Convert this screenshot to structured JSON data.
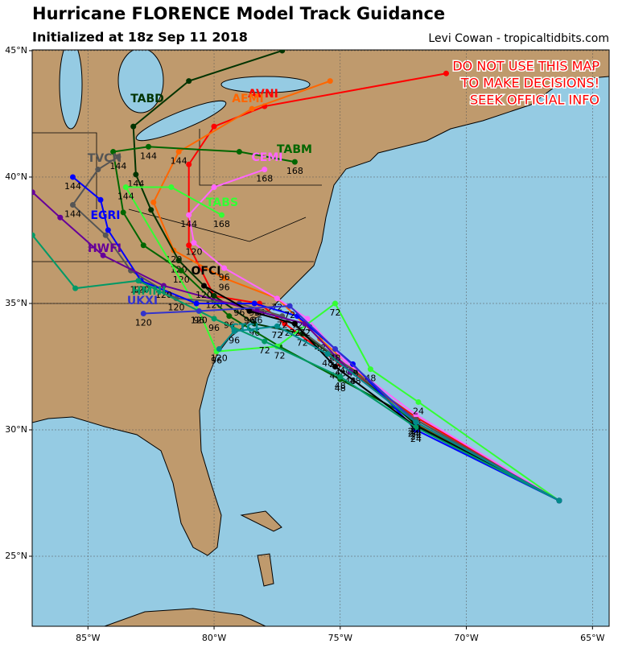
{
  "title": "Hurricane FLORENCE Model Track Guidance",
  "subtitle": "Initialized at 18z Sep 11 2018",
  "credit": "Levi Cowan - tropicaltidbits.com",
  "warning": [
    "DO NOT USE THIS MAP",
    "TO MAKE DECISIONS!",
    "SEEK OFFICIAL INFO"
  ],
  "lonlim": [
    -87.21,
    -64.34
  ],
  "latlim": [
    22.23,
    45.03
  ],
  "lonticks": [
    {
      "value": -85,
      "label": "85°W"
    },
    {
      "value": -80,
      "label": "80°W"
    },
    {
      "value": -75,
      "label": "75°W"
    },
    {
      "value": -70,
      "label": "70°W"
    },
    {
      "value": -65,
      "label": "65°W"
    }
  ],
  "latticks": [
    {
      "value": 25,
      "label": "25°N"
    },
    {
      "value": 30,
      "label": "30°N"
    },
    {
      "value": 35,
      "label": "35°N"
    },
    {
      "value": 40,
      "label": "40°N"
    },
    {
      "value": 45,
      "label": "45°N"
    }
  ],
  "models": [
    {
      "name": "AVNI",
      "color": "#ff0000",
      "points": [
        {
          "lon": -66.32,
          "lat": 27.2,
          "hour": null
        },
        {
          "lon": -72.0,
          "lat": 30.5,
          "hour": 24
        },
        {
          "lon": -75.0,
          "lat": 32.6,
          "hour": 48
        },
        {
          "lon": -77.2,
          "lat": 34.2,
          "hour": 72
        },
        {
          "lon": -78.2,
          "lat": 35.0,
          "hour": 96
        },
        {
          "lon": -80.0,
          "lat": 35.3,
          "hour": 120
        },
        {
          "lon": -81.0,
          "lat": 37.3,
          "hour": null
        },
        {
          "lon": -81.0,
          "lat": 40.5,
          "hour": null
        },
        {
          "lon": -80.0,
          "lat": 42.0,
          "hour": null
        },
        {
          "lon": -78.0,
          "lat": 42.8,
          "hour": null
        },
        {
          "lon": -70.8,
          "lat": 44.1,
          "hour": null
        }
      ]
    },
    {
      "name": "AEMI",
      "color": "#ff6600",
      "points": [
        {
          "lon": -66.32,
          "lat": 27.2,
          "hour": null
        },
        {
          "lon": -72.1,
          "lat": 30.3,
          "hour": 24
        },
        {
          "lon": -75.8,
          "lat": 33.6,
          "hour": 48
        },
        {
          "lon": -77.5,
          "lat": 35.2,
          "hour": 72
        },
        {
          "lon": -79.6,
          "lat": 36.0,
          "hour": 96
        },
        {
          "lon": -81.6,
          "lat": 37.1,
          "hour": 120
        },
        {
          "lon": -82.4,
          "lat": 39.0,
          "hour": null
        },
        {
          "lon": -81.4,
          "lat": 41.0,
          "hour": 144
        },
        {
          "lon": -78.5,
          "lat": 42.7,
          "hour": null
        },
        {
          "lon": -75.4,
          "lat": 43.8,
          "hour": null
        }
      ]
    },
    {
      "name": "TABD",
      "color": "#003300",
      "points": [
        {
          "lon": -66.32,
          "lat": 27.2,
          "hour": null
        },
        {
          "lon": -72.0,
          "lat": 30.2,
          "hour": 24
        },
        {
          "lon": -74.4,
          "lat": 32.3,
          "hour": 48
        },
        {
          "lon": -76.5,
          "lat": 33.8,
          "hour": 72
        },
        {
          "lon": -78.4,
          "lat": 34.2,
          "hour": 96
        },
        {
          "lon": -80.0,
          "lat": 35.3,
          "hour": null
        },
        {
          "lon": -81.4,
          "lat": 36.7,
          "hour": 120
        },
        {
          "lon": -82.5,
          "lat": 38.7,
          "hour": null
        },
        {
          "lon": -83.1,
          "lat": 40.1,
          "hour": 144
        },
        {
          "lon": -83.2,
          "lat": 42.0,
          "hour": null
        },
        {
          "lon": -81.0,
          "lat": 43.8,
          "hour": null
        },
        {
          "lon": -77.3,
          "lat": 45.0,
          "hour": null
        }
      ]
    },
    {
      "name": "TABM",
      "color": "#006600",
      "points": [
        {
          "lon": -66.32,
          "lat": 27.2,
          "hour": null
        },
        {
          "lon": -72.0,
          "lat": 30.4,
          "hour": 24
        },
        {
          "lon": -75.0,
          "lat": 32.0,
          "hour": 48
        },
        {
          "lon": -77.4,
          "lat": 33.3,
          "hour": 72
        },
        {
          "lon": -79.4,
          "lat": 34.5,
          "hour": 96
        },
        {
          "lon": -81.3,
          "lat": 36.3,
          "hour": 120
        },
        {
          "lon": -82.8,
          "lat": 37.3,
          "hour": null
        },
        {
          "lon": -83.6,
          "lat": 38.6,
          "hour": null
        },
        {
          "lon": -84.0,
          "lat": 41.0,
          "hour": null
        },
        {
          "lon": -82.6,
          "lat": 41.2,
          "hour": 144
        },
        {
          "lon": -79.0,
          "lat": 41.0,
          "hour": null
        },
        {
          "lon": -76.8,
          "lat": 40.6,
          "hour": 168
        }
      ]
    },
    {
      "name": "CEMI",
      "color": "#ff66ff",
      "points": [
        {
          "lon": -66.32,
          "lat": 27.2,
          "hour": null
        },
        {
          "lon": -72.0,
          "lat": 30.6,
          "hour": 24
        },
        {
          "lon": -74.8,
          "lat": 32.7,
          "hour": 48
        },
        {
          "lon": -76.3,
          "lat": 34.4,
          "hour": 72
        },
        {
          "lon": -77.5,
          "lat": 35.2,
          "hour": null
        },
        {
          "lon": -79.6,
          "lat": 36.4,
          "hour": 96
        },
        {
          "lon": -80.8,
          "lat": 37.4,
          "hour": 120
        },
        {
          "lon": -81.0,
          "lat": 38.5,
          "hour": 144
        },
        {
          "lon": -80.0,
          "lat": 39.6,
          "hour": null
        },
        {
          "lon": -78.0,
          "lat": 40.3,
          "hour": 168
        }
      ]
    },
    {
      "name": "TABS",
      "color": "#33ff33",
      "points": [
        {
          "lon": -66.32,
          "lat": 27.2,
          "hour": null
        },
        {
          "lon": -71.9,
          "lat": 31.1,
          "hour": 24
        },
        {
          "lon": -73.8,
          "lat": 32.4,
          "hour": 48
        },
        {
          "lon": -75.2,
          "lat": 35.0,
          "hour": 72
        },
        {
          "lon": -77.5,
          "lat": 33.3,
          "hour": null
        },
        {
          "lon": -79.9,
          "lat": 33.1,
          "hour": 96
        },
        {
          "lon": -80.6,
          "lat": 34.7,
          "hour": 120
        },
        {
          "lon": -83.5,
          "lat": 39.6,
          "hour": 144
        },
        {
          "lon": -81.7,
          "lat": 39.6,
          "hour": null
        },
        {
          "lon": -79.7,
          "lat": 38.5,
          "hour": 168
        }
      ]
    },
    {
      "name": "TVCN",
      "color": "#555555",
      "points": [
        {
          "lon": -66.32,
          "lat": 27.2,
          "hour": null
        },
        {
          "lon": -72.0,
          "lat": 30.4,
          "hour": 24
        },
        {
          "lon": -75.2,
          "lat": 32.9,
          "hour": 48
        },
        {
          "lon": -77.3,
          "lat": 34.5,
          "hour": 72
        },
        {
          "lon": -79.0,
          "lat": 35.0,
          "hour": 96
        },
        {
          "lon": -81.5,
          "lat": 35.2,
          "hour": 120
        },
        {
          "lon": -83.3,
          "lat": 36.3,
          "hour": null
        },
        {
          "lon": -84.3,
          "lat": 37.7,
          "hour": null
        },
        {
          "lon": -85.6,
          "lat": 38.9,
          "hour": 144
        },
        {
          "lon": -84.6,
          "lat": 40.3,
          "hour": null
        },
        {
          "lon": -83.8,
          "lat": 40.8,
          "hour": 144
        }
      ]
    },
    {
      "name": "EGRI",
      "color": "#0000ff",
      "points": [
        {
          "lon": -66.32,
          "lat": 27.2,
          "hour": null
        },
        {
          "lon": -72.0,
          "lat": 30.0,
          "hour": 24
        },
        {
          "lon": -74.5,
          "lat": 32.6,
          "hour": 48
        },
        {
          "lon": -76.7,
          "lat": 34.5,
          "hour": 72
        },
        {
          "lon": -78.4,
          "lat": 35.0,
          "hour": 96
        },
        {
          "lon": -80.7,
          "lat": 35.0,
          "hour": null
        },
        {
          "lon": -82.9,
          "lat": 35.9,
          "hour": 120
        },
        {
          "lon": -84.2,
          "lat": 37.9,
          "hour": null
        },
        {
          "lon": -84.5,
          "lat": 39.1,
          "hour": null
        },
        {
          "lon": -85.6,
          "lat": 40.0,
          "hour": 144
        }
      ]
    },
    {
      "name": "HWFI",
      "color": "#660099",
      "points": [
        {
          "lon": -66.32,
          "lat": 27.2,
          "hour": null
        },
        {
          "lon": -72.0,
          "lat": 30.3,
          "hour": 24
        },
        {
          "lon": -74.6,
          "lat": 32.3,
          "hour": 48
        },
        {
          "lon": -76.4,
          "lat": 34.2,
          "hour": 72
        },
        {
          "lon": -78.3,
          "lat": 34.7,
          "hour": 96
        },
        {
          "lon": -82.0,
          "lat": 35.7,
          "hour": 120
        },
        {
          "lon": -84.4,
          "lat": 36.9,
          "hour": null
        },
        {
          "lon": -86.1,
          "lat": 38.4,
          "hour": null
        },
        {
          "lon": -87.2,
          "lat": 39.4,
          "hour": null
        }
      ]
    },
    {
      "name": "OFCI",
      "color": "#000000",
      "points": [
        {
          "lon": -66.32,
          "lat": 27.2,
          "hour": null
        },
        {
          "lon": -72.1,
          "lat": 30.2,
          "hour": 24
        },
        {
          "lon": -75.2,
          "lat": 32.5,
          "hour": 48
        },
        {
          "lon": -76.8,
          "lat": 34.2,
          "hour": 72
        },
        {
          "lon": -78.6,
          "lat": 34.7,
          "hour": 96
        },
        {
          "lon": -80.4,
          "lat": 35.7,
          "hour": 120
        }
      ]
    },
    {
      "name": "HMNI",
      "color": "#009966",
      "points": [
        {
          "lon": -66.32,
          "lat": 27.2,
          "hour": null
        },
        {
          "lon": -72.0,
          "lat": 30.1,
          "hour": 24
        },
        {
          "lon": -75.0,
          "lat": 32.1,
          "hour": 48
        },
        {
          "lon": -78.0,
          "lat": 33.5,
          "hour": 72
        },
        {
          "lon": -80.0,
          "lat": 34.4,
          "hour": 96
        },
        {
          "lon": -83.0,
          "lat": 35.9,
          "hour": 120
        },
        {
          "lon": -85.5,
          "lat": 35.6,
          "hour": null
        },
        {
          "lon": -87.2,
          "lat": 37.7,
          "hour": null
        }
      ]
    },
    {
      "name": "UKXI",
      "color": "#3333cc",
      "points": [
        {
          "lon": -66.32,
          "lat": 27.2,
          "hour": null
        },
        {
          "lon": -72.0,
          "lat": 30.3,
          "hour": 24
        },
        {
          "lon": -75.2,
          "lat": 33.2,
          "hour": 48
        },
        {
          "lon": -77.0,
          "lat": 34.9,
          "hour": 72
        },
        {
          "lon": -80.6,
          "lat": 34.7,
          "hour": 96
        },
        {
          "lon": -82.8,
          "lat": 34.6,
          "hour": 120
        }
      ]
    },
    {
      "name": "CTCI",
      "color": "#008b8b",
      "points": [
        {
          "lon": -66.32,
          "lat": 27.2,
          "hour": null
        },
        {
          "lon": -72.0,
          "lat": 30.3,
          "hour": 24
        },
        {
          "lon": -75.5,
          "lat": 33.0,
          "hour": 48
        },
        {
          "lon": -77.5,
          "lat": 34.1,
          "hour": 72
        },
        {
          "lon": -79.2,
          "lat": 33.9,
          "hour": 96
        },
        {
          "lon": -79.8,
          "lat": 33.2,
          "hour": 120
        }
      ]
    }
  ]
}
